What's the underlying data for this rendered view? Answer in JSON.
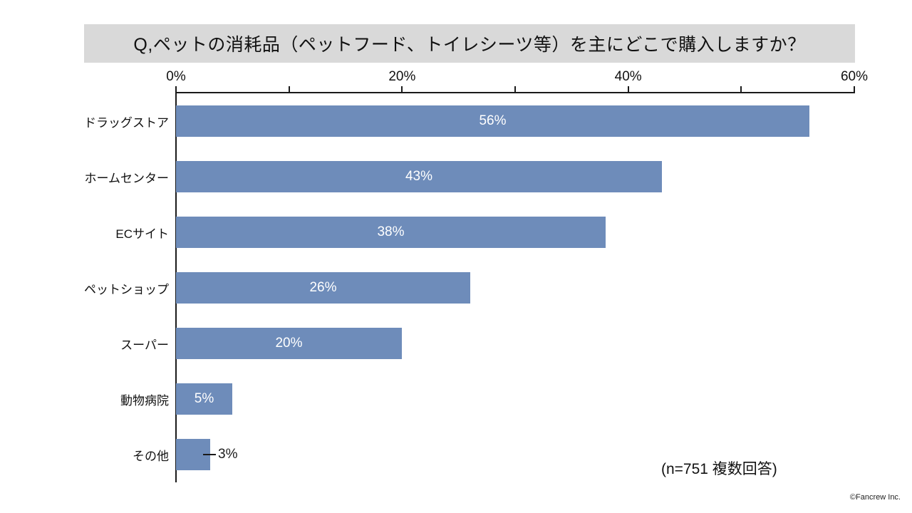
{
  "chart_data": {
    "type": "bar",
    "orientation": "horizontal",
    "title": "Q,ペットの消耗品（ペットフード、トイレシーツ等）を主にどこで購入しますか？",
    "categories": [
      "ドラッグストア",
      "ホームセンター",
      "ECサイト",
      "ペットショップ",
      "スーパー",
      "動物病院",
      "その他"
    ],
    "values": [
      56,
      43,
      38,
      26,
      20,
      5,
      3
    ],
    "value_label_suffix": "%",
    "xlim": [
      0,
      60
    ],
    "x_tick_labels": [
      "0%",
      "20%",
      "40%",
      "60%"
    ],
    "x_major_tick_step": 20,
    "x_minor_tick_step": 10,
    "value_axis_position": "top",
    "grid": false,
    "legend": false,
    "note": "(n=751 複数回答)",
    "footer": "©Fancrew Inc.",
    "colors": {
      "bar": "#6e8cba",
      "title_banner_bg": "#d9d9d9",
      "label_inside": "#ffffff",
      "label_outside": "#1a1a1a",
      "axis": "#1a1a1a",
      "background": "#ffffff"
    }
  }
}
